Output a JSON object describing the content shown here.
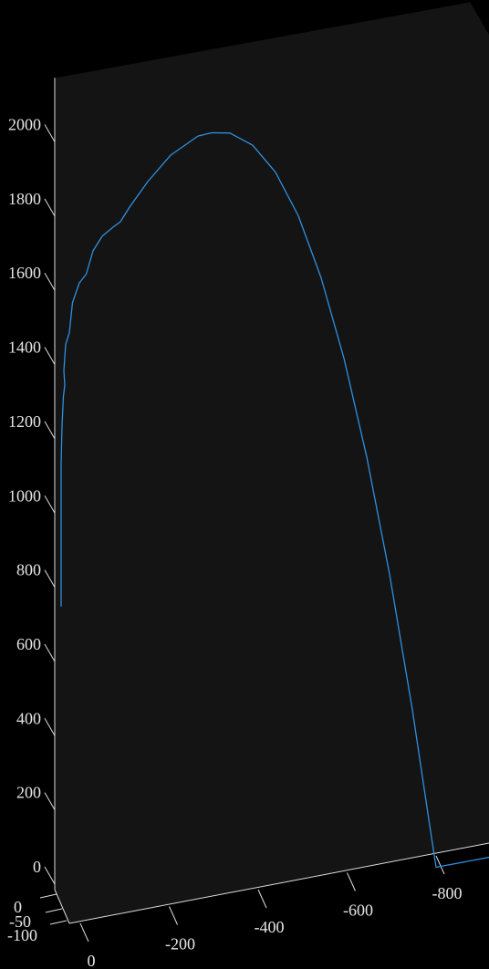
{
  "chart_data": {
    "type": "line",
    "projection": "3d",
    "z_axis": {
      "range": [
        0,
        2100
      ],
      "ticks": [
        0,
        200,
        400,
        600,
        800,
        1000,
        1200,
        1400,
        1600,
        1800,
        2000
      ],
      "tick_labels": [
        "0",
        "200",
        "400",
        "600",
        "800",
        "1000",
        "1200",
        "1400",
        "1600",
        "1800",
        "2000"
      ]
    },
    "x_axis": {
      "range": [
        0,
        -900
      ],
      "ticks": [
        0,
        -200,
        -400,
        -600,
        -800
      ],
      "tick_labels": [
        "0",
        "-200",
        "-400",
        "-600",
        "-800"
      ]
    },
    "y_axis": {
      "range": [
        0,
        -100
      ],
      "ticks": [
        0,
        -50,
        -100
      ],
      "tick_labels": [
        "0",
        "-50",
        "-100"
      ]
    },
    "series": [
      {
        "color": "#2f8fe0",
        "points": [
          {
            "x": 0,
            "z": 910
          },
          {
            "x": 0,
            "z": 1000
          },
          {
            "x": 0,
            "z": 1200
          },
          {
            "x": 0,
            "z": 1300
          },
          {
            "x": -2,
            "z": 1400
          },
          {
            "x": -5,
            "z": 1480
          },
          {
            "x": -8,
            "z": 1510
          },
          {
            "x": -6,
            "z": 1550
          },
          {
            "x": -10,
            "z": 1620
          },
          {
            "x": -18,
            "z": 1650
          },
          {
            "x": -25,
            "z": 1730
          },
          {
            "x": -40,
            "z": 1780
          },
          {
            "x": -55,
            "z": 1800
          },
          {
            "x": -70,
            "z": 1860
          },
          {
            "x": -90,
            "z": 1895
          },
          {
            "x": -115,
            "z": 1915
          },
          {
            "x": -130,
            "z": 1925
          },
          {
            "x": -150,
            "z": 1960
          },
          {
            "x": -190,
            "z": 2020
          },
          {
            "x": -240,
            "z": 2080
          },
          {
            "x": -300,
            "z": 2118
          },
          {
            "x": -330,
            "z": 2120
          },
          {
            "x": -370,
            "z": 2110
          },
          {
            "x": -420,
            "z": 2065
          },
          {
            "x": -470,
            "z": 1980
          },
          {
            "x": -520,
            "z": 1850
          },
          {
            "x": -570,
            "z": 1670
          },
          {
            "x": -620,
            "z": 1440
          },
          {
            "x": -670,
            "z": 1160
          },
          {
            "x": -720,
            "z": 830
          },
          {
            "x": -770,
            "z": 450
          },
          {
            "x": -810,
            "z": 110
          },
          {
            "x": -822,
            "z": 10
          },
          {
            "x": -855,
            "z": 10
          },
          {
            "x": -990,
            "z": 10
          }
        ]
      }
    ]
  }
}
